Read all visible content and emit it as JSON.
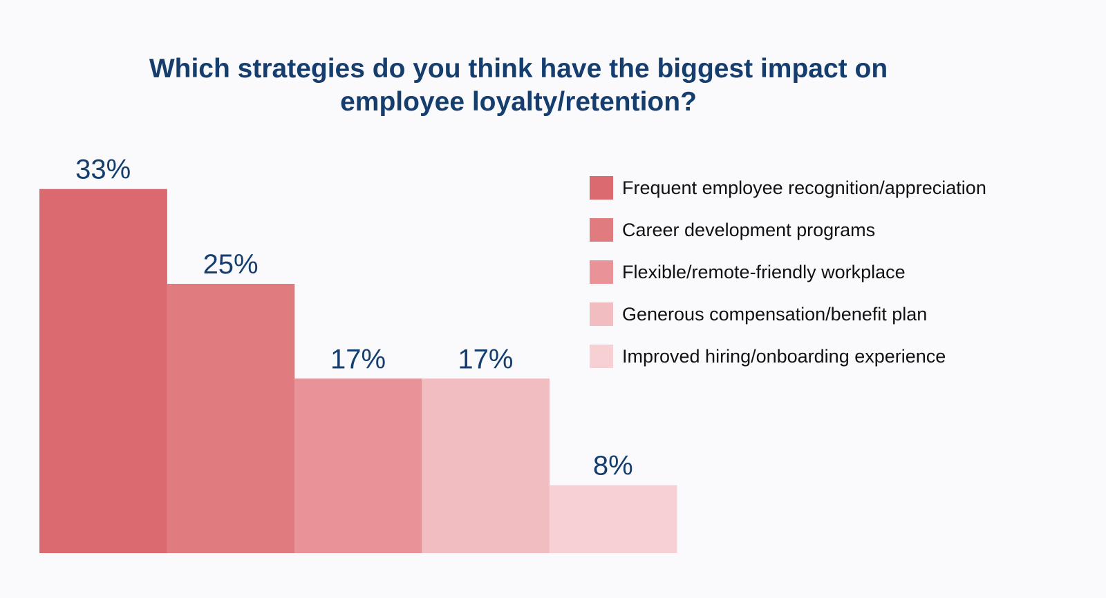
{
  "chart_data": {
    "type": "bar",
    "title": [
      "Which strategies do you think have the biggest impact on",
      "employee loyalty/retention?"
    ],
    "categories": [
      "Frequent employee recognition/appreciation",
      "Career development programs",
      "Flexible/remote-friendly workplace",
      "Generous compensation/benefit plan",
      "Improved hiring/onboarding experience"
    ],
    "values": [
      33,
      25,
      17,
      17,
      8
    ],
    "data_labels": [
      "33%",
      "25%",
      "17%",
      "17%",
      "8%"
    ],
    "colors": [
      "#DB6A70",
      "#E07B80",
      "#E99297",
      "#F2BDC0",
      "#F6D0D3"
    ],
    "xlabel": "",
    "ylabel": "",
    "grid": false,
    "legend": "right",
    "title_color": "#153E6E",
    "label_color": "#153E6E"
  }
}
